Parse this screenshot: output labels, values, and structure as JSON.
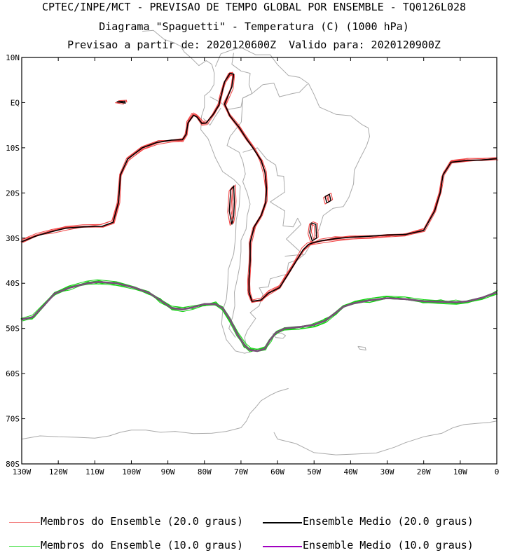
{
  "titles": {
    "line1": "CPTEC/INPE/MCT - PREVISAO DE TEMPO GLOBAL POR ENSEMBLE - TQ0126L028",
    "line2": "Diagrama \"Spaguetti\" - Temperatura (C) (1000 hPa)",
    "line3": "Previsao a partir de: 2020120600Z  Valido para: 2020120900Z"
  },
  "map": {
    "lon_range": [
      -130,
      0
    ],
    "lat_range": [
      -80,
      10
    ],
    "lat_ticks": [
      "10N",
      "EQ",
      "10S",
      "20S",
      "30S",
      "40S",
      "50S",
      "60S",
      "70S",
      "80S"
    ],
    "lon_ticks": [
      "130W",
      "120W",
      "110W",
      "100W",
      "90W",
      "80W",
      "70W",
      "60W",
      "50W",
      "40W",
      "30W",
      "20W",
      "10W",
      "0"
    ],
    "contour_20": [
      [
        -130,
        -30.8
      ],
      [
        -126,
        -29.5
      ],
      [
        -122,
        -28.6
      ],
      [
        -118,
        -27.8
      ],
      [
        -113,
        -27.5
      ],
      [
        -108,
        -27.4
      ],
      [
        -105,
        -26.5
      ],
      [
        -103.5,
        -22
      ],
      [
        -103,
        -16
      ],
      [
        -101,
        -12.5
      ],
      [
        -97,
        -10
      ],
      [
        -93,
        -8.8
      ],
      [
        -89,
        -8.3
      ],
      [
        -86,
        -8.2
      ],
      [
        -85,
        -7
      ],
      [
        -84.5,
        -4.5
      ],
      [
        -83,
        -2.8
      ],
      [
        -82,
        -3.2
      ],
      [
        -80.7,
        -4.6
      ],
      [
        -79.5,
        -4.5
      ],
      [
        -77.5,
        -2.5
      ],
      [
        -76,
        -0.5
      ],
      [
        -75.7,
        0.8
      ],
      [
        -75.3,
        2
      ],
      [
        -74.5,
        4.6
      ],
      [
        -73,
        6.5
      ],
      [
        -72,
        6.3
      ],
      [
        -72.5,
        3.5
      ],
      [
        -74.5,
        -0.3
      ],
      [
        -73,
        -3
      ],
      [
        -70.5,
        -5.5
      ],
      [
        -68.5,
        -8
      ],
      [
        -66.5,
        -10.3
      ],
      [
        -64.5,
        -12.8
      ],
      [
        -63.4,
        -15.5
      ],
      [
        -63,
        -19
      ],
      [
        -63.2,
        -22
      ],
      [
        -64.5,
        -25
      ],
      [
        -66.4,
        -27.5
      ],
      [
        -67.5,
        -31
      ],
      [
        -67.5,
        -35
      ],
      [
        -67.8,
        -39
      ],
      [
        -67.8,
        -42
      ],
      [
        -67,
        -44
      ],
      [
        -64.5,
        -43.7
      ],
      [
        -62.5,
        -42.2
      ],
      [
        -59.5,
        -41
      ],
      [
        -57.5,
        -38.5
      ],
      [
        -55.2,
        -35.5
      ],
      [
        -53,
        -32.6
      ],
      [
        -51.5,
        -31.4
      ],
      [
        -50.2,
        -31
      ],
      [
        -48,
        -30.6
      ],
      [
        -44,
        -30.1
      ],
      [
        -40,
        -29.8
      ],
      [
        -35,
        -29.6
      ],
      [
        -30,
        -29.3
      ],
      [
        -25,
        -29.2
      ],
      [
        -20,
        -28.3
      ],
      [
        -17,
        -24
      ],
      [
        -15.5,
        -20
      ],
      [
        -14.7,
        -16
      ],
      [
        -12.5,
        -13.2
      ],
      [
        -8,
        -12.8
      ],
      [
        -4,
        -12.7
      ],
      [
        0,
        -12.4
      ]
    ],
    "contour_10": [
      [
        -130,
        -48
      ],
      [
        -127,
        -47.5
      ],
      [
        -124,
        -45
      ],
      [
        -121,
        -42.3
      ],
      [
        -117,
        -41
      ],
      [
        -112,
        -40
      ],
      [
        -109,
        -39.7
      ],
      [
        -104,
        -40
      ],
      [
        -99,
        -41
      ],
      [
        -95,
        -42.2
      ],
      [
        -92,
        -43.8
      ],
      [
        -89,
        -45.5
      ],
      [
        -86,
        -45.8
      ],
      [
        -83,
        -45.3
      ],
      [
        -80,
        -44.6
      ],
      [
        -77,
        -44.6
      ],
      [
        -75,
        -45.5
      ],
      [
        -73,
        -48
      ],
      [
        -71,
        -51.3
      ],
      [
        -69,
        -53.8
      ],
      [
        -67.5,
        -54.8
      ],
      [
        -65.5,
        -55
      ],
      [
        -63.5,
        -54.5
      ],
      [
        -62,
        -52.5
      ],
      [
        -60.5,
        -51
      ],
      [
        -58,
        -50
      ],
      [
        -54,
        -49.7
      ],
      [
        -50,
        -49.2
      ],
      [
        -47,
        -48.3
      ],
      [
        -44,
        -46.5
      ],
      [
        -42,
        -45.2
      ],
      [
        -39,
        -44.4
      ],
      [
        -35,
        -43.8
      ],
      [
        -30,
        -43.3
      ],
      [
        -25,
        -43.5
      ],
      [
        -20,
        -44
      ],
      [
        -15,
        -44.1
      ],
      [
        -11,
        -44.2
      ],
      [
        -8,
        -44
      ],
      [
        -4,
        -43.2
      ],
      [
        0,
        -42
      ]
    ],
    "colors": {
      "member_20": "#f24545",
      "mean_20": "#000000",
      "member_10": "#11d411",
      "mean_10": "#7b4d7b",
      "land": "#a9a9a9"
    }
  },
  "legend": [
    {
      "label": "Membros do Ensemble (20.0 graus)",
      "color": "#f37a7a"
    },
    {
      "label": "Ensemble Medio (20.0 graus)",
      "color": "#000000"
    },
    {
      "label": "Membros do Ensemble (10.0 graus)",
      "color": "#33dd33"
    },
    {
      "label": "Ensemble Medio (10.0 graus)",
      "color": "#a000c0"
    }
  ]
}
